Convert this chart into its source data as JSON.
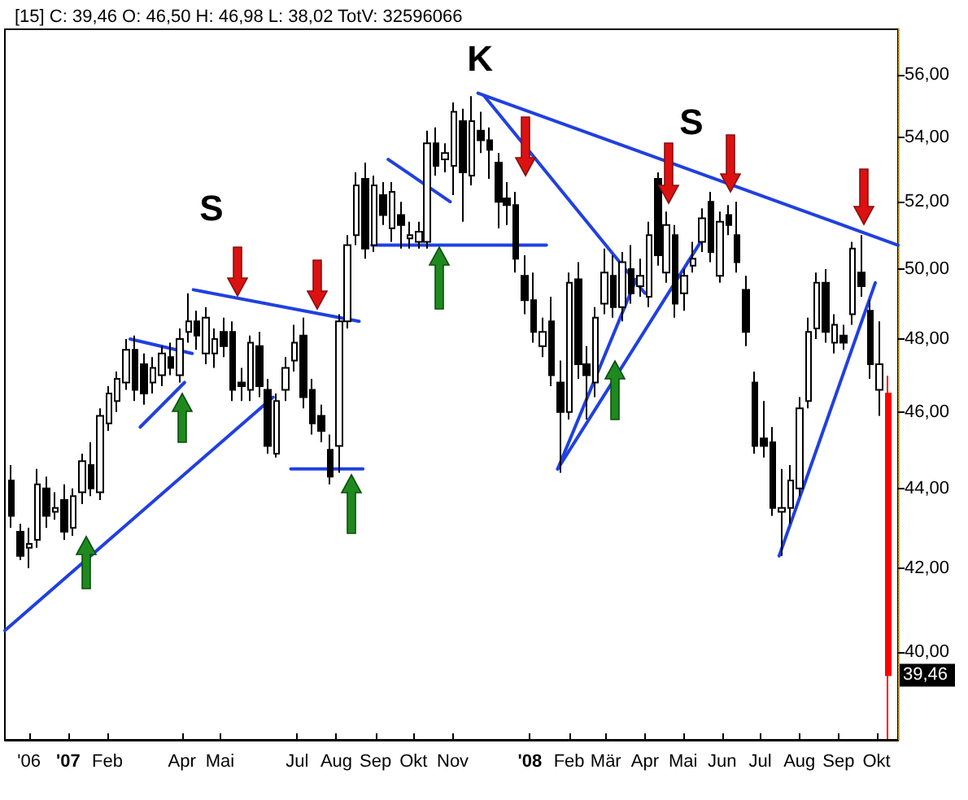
{
  "chart_data": {
    "type": "candlestick",
    "title": "[15] C: 39,46 O: 46,50 H: 46,98 L: 38,02 TotV: 32596066",
    "x": [
      "2006-11-17",
      "2006-11-24",
      "2006-12-01",
      "2006-12-08",
      "2006-12-15",
      "2006-12-22",
      "2006-12-29",
      "2007-01-05",
      "2007-01-12",
      "2007-01-19",
      "2007-01-26",
      "2007-02-02",
      "2007-02-09",
      "2007-02-16",
      "2007-02-23",
      "2007-03-02",
      "2007-03-09",
      "2007-03-16",
      "2007-03-23",
      "2007-03-30",
      "2007-04-06",
      "2007-04-13",
      "2007-04-20",
      "2007-04-27",
      "2007-05-04",
      "2007-05-11",
      "2007-05-18",
      "2007-05-25",
      "2007-06-01",
      "2007-06-08",
      "2007-06-15",
      "2007-06-22",
      "2007-06-29",
      "2007-07-06",
      "2007-07-13",
      "2007-07-20",
      "2007-07-27",
      "2007-08-03",
      "2007-08-10",
      "2007-08-17",
      "2007-08-24",
      "2007-08-31",
      "2007-09-07",
      "2007-09-14",
      "2007-09-21",
      "2007-09-28",
      "2007-10-05",
      "2007-10-12",
      "2007-10-19",
      "2007-10-26",
      "2007-11-02",
      "2007-11-09",
      "2007-11-16",
      "2007-11-23",
      "2007-11-30",
      "2007-12-07",
      "2007-12-14",
      "2007-12-21",
      "2007-12-28",
      "2008-01-04",
      "2008-01-11",
      "2008-01-18",
      "2008-01-25",
      "2008-02-01",
      "2008-02-08",
      "2008-02-15",
      "2008-02-22",
      "2008-02-29",
      "2008-03-07",
      "2008-03-14",
      "2008-03-21",
      "2008-03-28",
      "2008-04-04",
      "2008-04-11",
      "2008-04-18",
      "2008-04-25",
      "2008-05-02",
      "2008-05-09",
      "2008-05-16",
      "2008-05-23",
      "2008-05-30",
      "2008-06-06",
      "2008-06-13",
      "2008-06-20",
      "2008-06-27",
      "2008-07-04",
      "2008-07-11",
      "2008-07-18",
      "2008-07-25",
      "2008-08-01",
      "2008-08-08",
      "2008-08-15",
      "2008-08-22",
      "2008-08-29",
      "2008-09-05",
      "2008-09-12",
      "2008-09-19",
      "2008-09-26",
      "2008-10-03",
      "2008-10-10"
    ],
    "ohlc": [
      [
        44.2,
        44.6,
        43.0,
        43.3
      ],
      [
        42.9,
        43.1,
        42.2,
        42.3
      ],
      [
        42.5,
        43.0,
        42.0,
        42.6
      ],
      [
        42.7,
        44.5,
        42.5,
        44.1
      ],
      [
        44.0,
        44.3,
        43.0,
        43.3
      ],
      [
        43.4,
        43.9,
        43.2,
        43.5
      ],
      [
        43.7,
        44.1,
        42.7,
        42.9
      ],
      [
        43.0,
        44.0,
        42.8,
        43.8
      ],
      [
        43.9,
        44.9,
        43.6,
        44.7
      ],
      [
        44.6,
        45.2,
        43.8,
        44.0
      ],
      [
        43.9,
        46.1,
        43.7,
        45.9
      ],
      [
        45.7,
        46.7,
        45.5,
        46.5
      ],
      [
        46.3,
        47.1,
        46.0,
        46.9
      ],
      [
        46.8,
        48.0,
        46.6,
        47.7
      ],
      [
        47.7,
        48.1,
        46.3,
        46.6
      ],
      [
        47.3,
        47.6,
        46.2,
        46.5
      ],
      [
        46.8,
        47.5,
        46.5,
        47.2
      ],
      [
        47.0,
        47.8,
        46.7,
        47.6
      ],
      [
        47.5,
        47.9,
        47.0,
        47.2
      ],
      [
        47.0,
        48.3,
        46.8,
        48.0
      ],
      [
        48.2,
        49.3,
        47.9,
        48.5
      ],
      [
        48.5,
        48.8,
        47.7,
        48.1
      ],
      [
        47.6,
        48.9,
        47.3,
        48.6
      ],
      [
        47.6,
        48.3,
        47.2,
        48.0
      ],
      [
        48.2,
        48.6,
        47.5,
        47.8
      ],
      [
        48.2,
        48.5,
        46.3,
        46.6
      ],
      [
        46.8,
        47.2,
        46.3,
        46.7
      ],
      [
        46.6,
        48.1,
        46.3,
        47.9
      ],
      [
        47.8,
        48.2,
        46.4,
        46.7
      ],
      [
        46.6,
        46.9,
        44.9,
        45.1
      ],
      [
        44.9,
        46.5,
        44.8,
        46.3
      ],
      [
        46.6,
        47.5,
        46.3,
        47.2
      ],
      [
        47.4,
        48.4,
        47.1,
        47.9
      ],
      [
        48.1,
        48.6,
        46.1,
        46.4
      ],
      [
        46.6,
        46.9,
        45.4,
        45.7
      ],
      [
        45.9,
        46.2,
        45.2,
        45.5
      ],
      [
        45.0,
        45.4,
        44.1,
        44.3
      ],
      [
        45.1,
        48.7,
        44.4,
        48.5
      ],
      [
        48.5,
        51.0,
        48.3,
        50.7
      ],
      [
        51.0,
        52.9,
        50.7,
        52.5
      ],
      [
        52.7,
        53.2,
        50.3,
        50.6
      ],
      [
        50.7,
        52.8,
        50.5,
        52.5
      ],
      [
        52.2,
        52.6,
        51.3,
        51.6
      ],
      [
        51.2,
        52.6,
        50.8,
        52.3
      ],
      [
        51.6,
        52.0,
        50.6,
        51.3
      ],
      [
        50.9,
        51.4,
        50.6,
        51.0
      ],
      [
        50.8,
        51.4,
        50.6,
        51.1
      ],
      [
        50.8,
        54.2,
        50.6,
        53.8
      ],
      [
        53.8,
        54.3,
        52.8,
        53.1
      ],
      [
        53.3,
        53.8,
        52.9,
        53.5
      ],
      [
        53.1,
        55.1,
        52.2,
        54.8
      ],
      [
        54.5,
        54.9,
        51.4,
        52.9
      ],
      [
        52.8,
        55.3,
        52.5,
        54.5
      ],
      [
        54.2,
        54.8,
        53.5,
        53.9
      ],
      [
        53.9,
        54.3,
        52.7,
        53.6
      ],
      [
        53.2,
        53.5,
        51.2,
        52.0
      ],
      [
        52.1,
        52.6,
        51.3,
        51.9
      ],
      [
        51.9,
        52.3,
        49.9,
        50.3
      ],
      [
        49.8,
        50.4,
        48.7,
        49.1
      ],
      [
        49.1,
        49.9,
        47.9,
        48.2
      ],
      [
        47.8,
        48.6,
        47.5,
        48.2
      ],
      [
        48.5,
        49.2,
        46.7,
        47.0
      ],
      [
        46.8,
        47.4,
        44.4,
        46.0
      ],
      [
        46.0,
        49.9,
        45.8,
        49.6
      ],
      [
        49.7,
        50.2,
        46.9,
        47.3
      ],
      [
        47.3,
        47.8,
        45.8,
        47.0
      ],
      [
        46.8,
        48.9,
        46.4,
        48.6
      ],
      [
        49.0,
        50.6,
        48.7,
        49.9
      ],
      [
        49.8,
        50.4,
        48.6,
        48.9
      ],
      [
        48.9,
        50.5,
        48.5,
        50.2
      ],
      [
        50.0,
        50.7,
        49.0,
        49.3
      ],
      [
        49.5,
        50.3,
        49.2,
        49.8
      ],
      [
        49.2,
        51.4,
        48.9,
        51.0
      ],
      [
        52.7,
        52.9,
        50.1,
        50.4
      ],
      [
        49.9,
        51.7,
        49.6,
        51.3
      ],
      [
        51.0,
        51.3,
        48.6,
        49.0
      ],
      [
        49.3,
        50.0,
        48.8,
        49.8
      ],
      [
        50.1,
        50.8,
        49.9,
        50.3
      ],
      [
        50.8,
        51.8,
        50.5,
        51.5
      ],
      [
        52.0,
        52.3,
        50.2,
        50.5
      ],
      [
        49.8,
        51.7,
        49.6,
        51.4
      ],
      [
        51.6,
        51.9,
        51.0,
        51.3
      ],
      [
        51.0,
        52.0,
        49.9,
        50.2
      ],
      [
        49.4,
        49.8,
        47.8,
        48.2
      ],
      [
        46.8,
        47.1,
        44.9,
        45.1
      ],
      [
        45.3,
        46.3,
        44.8,
        45.1
      ],
      [
        45.2,
        45.6,
        43.3,
        43.5
      ],
      [
        43.4,
        44.5,
        42.3,
        43.5
      ],
      [
        43.5,
        44.6,
        43.1,
        44.2
      ],
      [
        44.0,
        46.4,
        43.8,
        46.1
      ],
      [
        46.3,
        48.6,
        46.1,
        48.2
      ],
      [
        48.3,
        49.9,
        48.0,
        49.6
      ],
      [
        49.6,
        50.0,
        47.9,
        48.2
      ],
      [
        47.9,
        48.7,
        47.6,
        48.4
      ],
      [
        48.1,
        48.4,
        47.7,
        47.9
      ],
      [
        48.7,
        50.8,
        48.4,
        50.6
      ],
      [
        49.9,
        51.0,
        49.2,
        49.5
      ],
      [
        48.8,
        49.1,
        46.9,
        47.3
      ],
      [
        46.6,
        48.5,
        45.9,
        47.3
      ],
      [
        46.5,
        46.98,
        38.02,
        39.46
      ]
    ],
    "colors": [
      "#000000",
      "#000000",
      "#ffffff",
      "#ffffff",
      "#000000",
      "#ffffff",
      "#000000",
      "#ffffff",
      "#ffffff",
      "#000000",
      "#ffffff",
      "#ffffff",
      "#ffffff",
      "#ffffff",
      "#000000",
      "#000000",
      "#ffffff",
      "#ffffff",
      "#000000",
      "#ffffff",
      "#ffffff",
      "#000000",
      "#ffffff",
      "#ffffff",
      "#000000",
      "#000000",
      "#000000",
      "#ffffff",
      "#000000",
      "#000000",
      "#ffffff",
      "#ffffff",
      "#ffffff",
      "#000000",
      "#000000",
      "#000000",
      "#000000",
      "#ffffff",
      "#ffffff",
      "#ffffff",
      "#000000",
      "#ffffff",
      "#000000",
      "#ffffff",
      "#000000",
      "#ffffff",
      "#ffffff",
      "#ffffff",
      "#000000",
      "#ffffff",
      "#ffffff",
      "#000000",
      "#ffffff",
      "#000000",
      "#000000",
      "#000000",
      "#000000",
      "#000000",
      "#000000",
      "#000000",
      "#ffffff",
      "#000000",
      "#000000",
      "#ffffff",
      "#000000",
      "#000000",
      "#ffffff",
      "#ffffff",
      "#000000",
      "#ffffff",
      "#000000",
      "#ffffff",
      "#ffffff",
      "#000000",
      "#ffffff",
      "#000000",
      "#ffffff",
      "#ffffff",
      "#ffffff",
      "#000000",
      "#ffffff",
      "#000000",
      "#000000",
      "#000000",
      "#000000",
      "#000000",
      "#000000",
      "#ffffff",
      "#ffffff",
      "#ffffff",
      "#ffffff",
      "#ffffff",
      "#000000",
      "#ffffff",
      "#000000",
      "#ffffff",
      "#000000",
      "#000000",
      "#ffffff",
      "#ff0000"
    ],
    "series": [
      {
        "type": "line",
        "color": "#2040e0",
        "x": [
          "2006-11-12",
          "2007-06-12"
        ],
        "values": [
          40.5,
          46.4
        ]
      },
      {
        "type": "line",
        "color": "#2040e0",
        "x": [
          "2007-02-19",
          "2007-04-09"
        ],
        "values": [
          48.0,
          47.6
        ]
      },
      {
        "type": "line",
        "color": "#2040e0",
        "x": [
          "2007-02-27",
          "2007-04-03"
        ],
        "values": [
          45.6,
          46.8
        ]
      },
      {
        "type": "line",
        "color": "#2040e0",
        "x": [
          "2007-04-10",
          "2007-08-19"
        ],
        "values": [
          49.4,
          48.5
        ]
      },
      {
        "type": "line",
        "color": "#2040e0",
        "x": [
          "2007-06-26",
          "2007-08-22"
        ],
        "values": [
          44.5,
          44.5
        ]
      },
      {
        "type": "line",
        "color": "#2040e0",
        "x": [
          "2007-08-29",
          "2008-01-14"
        ],
        "values": [
          50.7,
          50.7
        ]
      },
      {
        "type": "line",
        "color": "#2040e0",
        "x": [
          "2007-09-11",
          "2007-10-30"
        ],
        "values": [
          53.3,
          52.0
        ]
      },
      {
        "type": "line",
        "color": "#2040e0",
        "x": [
          "2007-11-21",
          "2008-10-18"
        ],
        "values": [
          55.4,
          50.7
        ]
      },
      {
        "type": "line",
        "color": "#2040e0",
        "x": [
          "2007-11-26",
          "2008-04-01"
        ],
        "values": [
          55.3,
          49.3
        ]
      },
      {
        "type": "line",
        "color": "#2040e0",
        "x": [
          "2008-01-23",
          "2008-03-25"
        ],
        "values": [
          44.5,
          49.7
        ]
      },
      {
        "type": "line",
        "color": "#2040e0",
        "x": [
          "2008-01-23",
          "2008-05-15"
        ],
        "values": [
          44.5,
          50.8
        ]
      },
      {
        "type": "line",
        "color": "#2040e0",
        "x": [
          "2008-07-16",
          "2008-09-30"
        ],
        "values": [
          42.3,
          49.6
        ]
      }
    ],
    "xlim": [
      "2006-11-12",
      "2008-10-18"
    ],
    "xticks": [
      {
        "value": "2006-12-01",
        "label": "'06"
      },
      {
        "value": "2007-01-01",
        "label": "'07"
      },
      {
        "value": "2007-02-01",
        "label": "Feb"
      },
      {
        "value": "2007-04-01",
        "label": "Apr"
      },
      {
        "value": "2007-05-01",
        "label": "Mai"
      },
      {
        "value": "2007-07-01",
        "label": "Jul"
      },
      {
        "value": "2007-08-01",
        "label": "Aug"
      },
      {
        "value": "2007-09-01",
        "label": "Sep"
      },
      {
        "value": "2007-10-01",
        "label": "Okt"
      },
      {
        "value": "2007-11-01",
        "label": "Nov"
      },
      {
        "value": "2008-01-01",
        "label": "'08"
      },
      {
        "value": "2008-02-01",
        "label": "Feb"
      },
      {
        "value": "2008-03-01",
        "label": "Mär"
      },
      {
        "value": "2008-04-01",
        "label": "Apr"
      },
      {
        "value": "2008-05-01",
        "label": "Mai"
      },
      {
        "value": "2008-06-01",
        "label": "Jun"
      },
      {
        "value": "2008-07-01",
        "label": "Jul"
      },
      {
        "value": "2008-08-01",
        "label": "Aug"
      },
      {
        "value": "2008-09-01",
        "label": "Sep"
      },
      {
        "value": "2008-10-01",
        "label": "Okt"
      }
    ],
    "ylim": [
      38.0,
      57.5
    ],
    "yticks": [
      {
        "value": 40,
        "label": "40,00"
      },
      {
        "value": 42,
        "label": "42,00"
      },
      {
        "value": 44,
        "label": "44,00"
      },
      {
        "value": 46,
        "label": "46,00"
      },
      {
        "value": 48,
        "label": "48,00"
      },
      {
        "value": 50,
        "label": "50,00"
      },
      {
        "value": 52,
        "label": "52,00"
      },
      {
        "value": 54,
        "label": "54,00"
      },
      {
        "value": 56,
        "label": "56,00"
      }
    ],
    "log": true,
    "grid": false,
    "marker": "none",
    "line_style": "solid",
    "annotations": [
      "S",
      "K",
      "S",
      {
        "text": "39,46",
        "y": 39.46
      }
    ]
  }
}
